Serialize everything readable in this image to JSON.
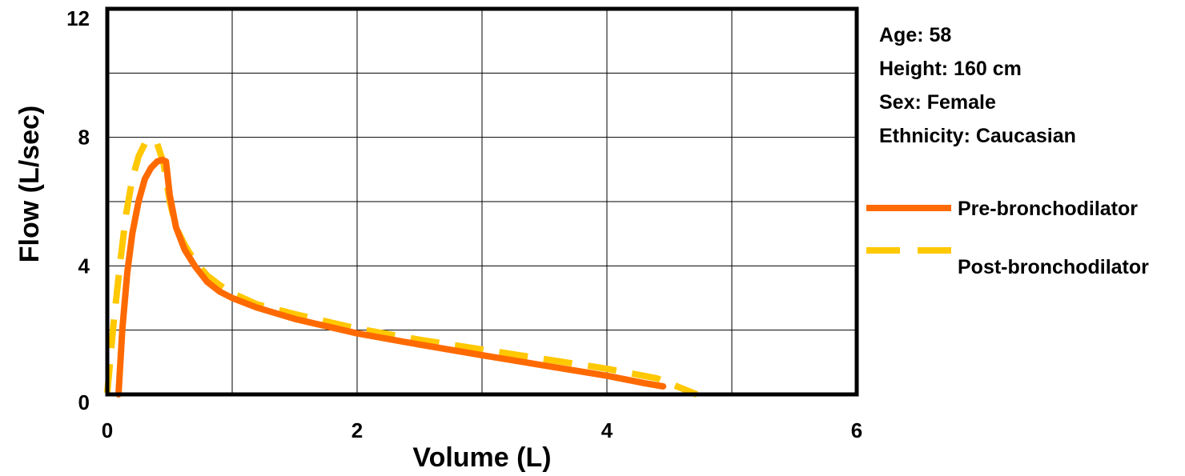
{
  "chart_data": {
    "type": "line",
    "xlabel": "Volume (L)",
    "ylabel": "Flow (L/sec)",
    "xlim": [
      0,
      6
    ],
    "ylim": [
      0,
      12
    ],
    "x_ticks": [
      0,
      2,
      4,
      6
    ],
    "x_tick_labels": [
      "0",
      "2",
      "4",
      "6"
    ],
    "y_ticks": [
      0,
      4,
      8,
      12
    ],
    "y_tick_labels": [
      "0",
      "4",
      "8",
      "12"
    ],
    "x_grid": [
      0,
      1,
      2,
      3,
      4,
      5,
      6
    ],
    "y_grid": [
      0,
      2,
      4,
      6,
      8,
      10,
      12
    ],
    "grid": true,
    "legend_position": "right",
    "series": [
      {
        "name": "Pre-bronchodilator",
        "color": "#ff6a00",
        "style": "solid",
        "points": [
          [
            0.09,
            0.0
          ],
          [
            0.12,
            2.0
          ],
          [
            0.16,
            3.8
          ],
          [
            0.2,
            5.0
          ],
          [
            0.25,
            6.0
          ],
          [
            0.3,
            6.7
          ],
          [
            0.35,
            7.05
          ],
          [
            0.4,
            7.25
          ],
          [
            0.44,
            7.3
          ],
          [
            0.47,
            7.25
          ],
          [
            0.5,
            6.2
          ],
          [
            0.55,
            5.2
          ],
          [
            0.62,
            4.5
          ],
          [
            0.7,
            4.0
          ],
          [
            0.8,
            3.5
          ],
          [
            0.9,
            3.2
          ],
          [
            1.0,
            3.0
          ],
          [
            1.2,
            2.7
          ],
          [
            1.5,
            2.35
          ],
          [
            2.0,
            1.9
          ],
          [
            2.5,
            1.55
          ],
          [
            3.0,
            1.22
          ],
          [
            3.5,
            0.9
          ],
          [
            4.0,
            0.58
          ],
          [
            4.3,
            0.35
          ],
          [
            4.45,
            0.25
          ]
        ]
      },
      {
        "name": "Post-bronchodilator",
        "color": "#ffc800",
        "style": "dashed",
        "points": [
          [
            0.0,
            0.05
          ],
          [
            0.05,
            2.2
          ],
          [
            0.1,
            4.0
          ],
          [
            0.15,
            5.6
          ],
          [
            0.2,
            6.7
          ],
          [
            0.25,
            7.4
          ],
          [
            0.3,
            7.8
          ],
          [
            0.35,
            7.95
          ],
          [
            0.4,
            7.8
          ],
          [
            0.45,
            7.2
          ],
          [
            0.5,
            6.0
          ],
          [
            0.55,
            5.2
          ],
          [
            0.62,
            4.65
          ],
          [
            0.7,
            4.15
          ],
          [
            0.8,
            3.7
          ],
          [
            0.9,
            3.4
          ],
          [
            1.0,
            3.15
          ],
          [
            1.2,
            2.8
          ],
          [
            1.5,
            2.5
          ],
          [
            2.0,
            2.05
          ],
          [
            2.5,
            1.7
          ],
          [
            3.0,
            1.4
          ],
          [
            3.5,
            1.1
          ],
          [
            4.0,
            0.8
          ],
          [
            4.4,
            0.5
          ],
          [
            4.72,
            0.0
          ]
        ]
      }
    ],
    "info": [
      "Age: 58",
      "Height: 160 cm",
      "Sex: Female",
      "Ethnicity: Caucasian"
    ]
  }
}
